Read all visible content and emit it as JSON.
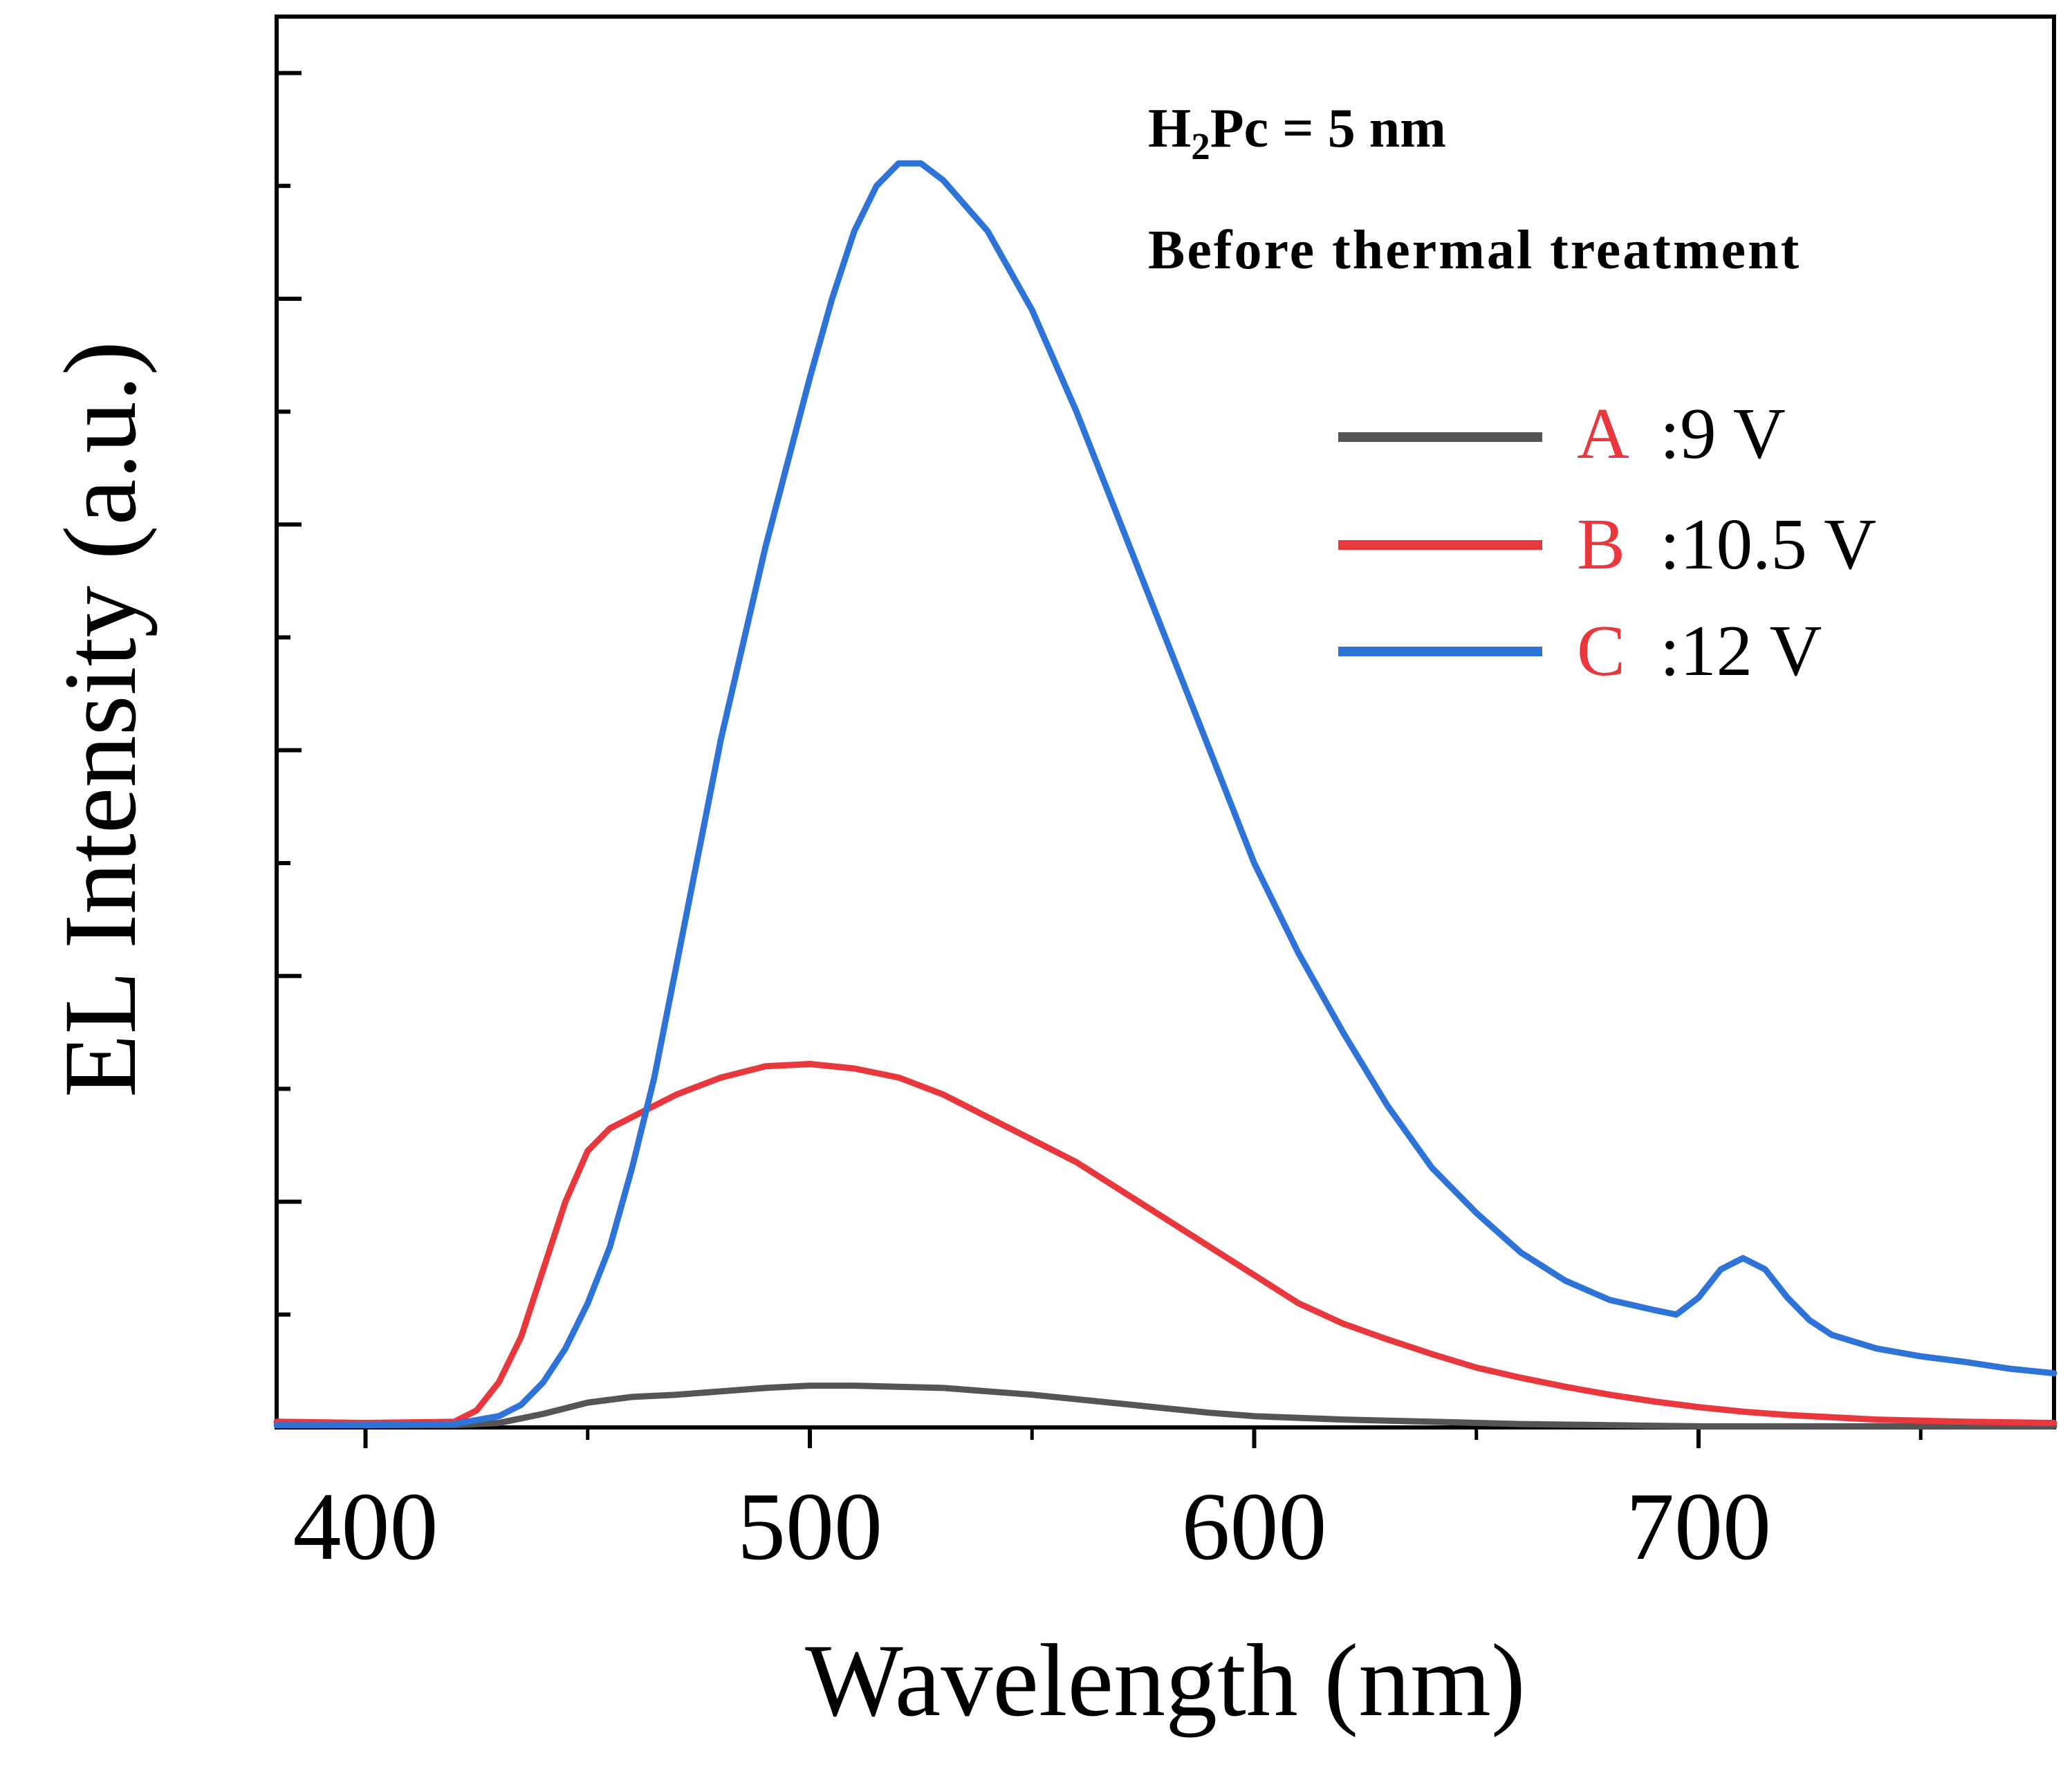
{
  "chart_data": {
    "type": "line",
    "xlabel": "Wavelength (nm)",
    "ylabel": "EL Intensity (a.u.)",
    "xlim": [
      380,
      780
    ],
    "ylim": [
      0,
      1.25
    ],
    "x_ticks": [
      400,
      500,
      600,
      700
    ],
    "x_tick_labels": [
      "400",
      "500",
      "600",
      "700"
    ],
    "y_tick_labels_shown": false,
    "annotations": {
      "line1_main": "H",
      "line1_sub": "2",
      "line1_rest": "Pc = 5 nm",
      "line2": "Before thermal treatment"
    },
    "series": [
      {
        "key": "A",
        "legend_letter": "A",
        "legend_value": ":9 V",
        "color": "#555555",
        "x": [
          380,
          400,
          420,
          430,
          440,
          450,
          460,
          470,
          480,
          490,
          500,
          510,
          520,
          530,
          540,
          550,
          560,
          570,
          580,
          590,
          600,
          620,
          640,
          660,
          680,
          700,
          720,
          740,
          760,
          780
        ],
        "y": [
          0.005,
          0.002,
          0.002,
          0.004,
          0.012,
          0.022,
          0.027,
          0.029,
          0.032,
          0.035,
          0.037,
          0.037,
          0.036,
          0.035,
          0.032,
          0.029,
          0.025,
          0.021,
          0.017,
          0.013,
          0.01,
          0.007,
          0.005,
          0.003,
          0.002,
          0.001,
          0.001,
          0.001,
          0.001,
          0.001
        ]
      },
      {
        "key": "B",
        "legend_letter": "B",
        "legend_value": ":10.5 V",
        "color": "#e8383d",
        "x": [
          380,
          400,
          420,
          425,
          430,
          435,
          440,
          445,
          450,
          455,
          460,
          465,
          470,
          480,
          490,
          500,
          510,
          520,
          530,
          540,
          550,
          560,
          570,
          580,
          590,
          600,
          610,
          620,
          630,
          640,
          650,
          660,
          670,
          680,
          690,
          700,
          710,
          720,
          740,
          760,
          780
        ],
        "y": [
          0.005,
          0.004,
          0.005,
          0.015,
          0.04,
          0.08,
          0.14,
          0.2,
          0.245,
          0.265,
          0.275,
          0.285,
          0.295,
          0.31,
          0.32,
          0.322,
          0.318,
          0.31,
          0.295,
          0.275,
          0.255,
          0.235,
          0.21,
          0.185,
          0.16,
          0.135,
          0.11,
          0.092,
          0.078,
          0.065,
          0.053,
          0.044,
          0.036,
          0.029,
          0.023,
          0.018,
          0.014,
          0.011,
          0.007,
          0.005,
          0.004
        ]
      },
      {
        "key": "C",
        "legend_letter": "C",
        "legend_value": ":12 V",
        "color": "#2d73d8",
        "x": [
          380,
          400,
          420,
          430,
          435,
          440,
          445,
          450,
          455,
          460,
          465,
          470,
          475,
          480,
          490,
          500,
          505,
          510,
          515,
          520,
          525,
          530,
          540,
          550,
          560,
          570,
          580,
          590,
          600,
          610,
          620,
          630,
          640,
          650,
          660,
          670,
          680,
          690,
          695,
          700,
          705,
          710,
          715,
          720,
          725,
          730,
          740,
          750,
          760,
          770,
          780
        ],
        "y": [
          0.002,
          0.002,
          0.003,
          0.01,
          0.02,
          0.04,
          0.07,
          0.11,
          0.16,
          0.23,
          0.31,
          0.41,
          0.51,
          0.61,
          0.78,
          0.93,
          1.0,
          1.06,
          1.1,
          1.12,
          1.12,
          1.105,
          1.06,
          0.99,
          0.9,
          0.8,
          0.7,
          0.6,
          0.5,
          0.42,
          0.35,
          0.285,
          0.23,
          0.19,
          0.155,
          0.13,
          0.113,
          0.104,
          0.1,
          0.115,
          0.14,
          0.15,
          0.14,
          0.115,
          0.095,
          0.082,
          0.07,
          0.063,
          0.058,
          0.052,
          0.048
        ]
      }
    ]
  }
}
